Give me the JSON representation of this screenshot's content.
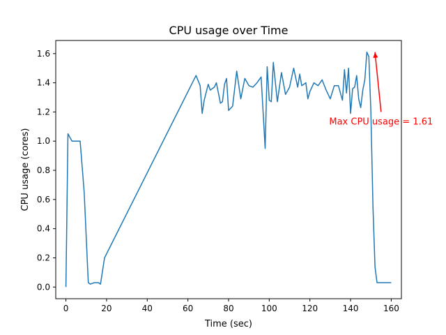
{
  "chart_data": {
    "type": "line",
    "title": "CPU usage over Time",
    "xlabel": "Time (sec)",
    "ylabel": "CPU usage (cores)",
    "xlim": [
      -5,
      165
    ],
    "ylim": [
      -0.08,
      1.69
    ],
    "xticks": [
      0,
      20,
      40,
      60,
      80,
      100,
      120,
      140,
      160
    ],
    "yticks": [
      0.0,
      0.2,
      0.4,
      0.6,
      0.8,
      1.0,
      1.2,
      1.4,
      1.6
    ],
    "ytick_labels": [
      "0.0",
      "0.2",
      "0.4",
      "0.6",
      "0.8",
      "1.0",
      "1.2",
      "1.4",
      "1.6"
    ],
    "grid": false,
    "series": [
      {
        "name": "CPU usage",
        "color": "#1f77b4",
        "x": [
          0,
          1,
          3,
          7,
          9,
          11,
          12,
          14,
          16,
          17,
          19,
          64,
          66,
          67,
          68,
          70,
          71,
          73,
          74,
          76,
          77,
          78,
          79,
          80,
          82,
          84,
          86,
          88,
          90,
          92,
          94,
          96,
          98,
          99,
          100,
          101,
          102,
          104,
          106,
          108,
          110,
          112,
          114,
          115,
          116,
          118,
          119,
          120,
          122,
          124,
          126,
          128,
          130,
          132,
          134,
          136,
          137,
          138,
          139,
          140,
          141,
          142,
          143,
          144,
          145,
          146,
          147,
          148,
          149,
          150,
          151,
          152,
          153,
          154,
          155,
          156,
          157,
          158,
          160
        ],
        "y": [
          0.0,
          1.05,
          1.0,
          1.0,
          0.65,
          0.03,
          0.02,
          0.03,
          0.03,
          0.02,
          0.2,
          1.45,
          1.38,
          1.19,
          1.28,
          1.39,
          1.35,
          1.37,
          1.4,
          1.26,
          1.27,
          1.39,
          1.43,
          1.21,
          1.24,
          1.48,
          1.29,
          1.43,
          1.38,
          1.37,
          1.4,
          1.44,
          0.95,
          1.51,
          1.28,
          1.27,
          1.54,
          1.27,
          1.47,
          1.32,
          1.37,
          1.5,
          1.37,
          1.46,
          1.38,
          1.4,
          1.29,
          1.34,
          1.4,
          1.38,
          1.42,
          1.35,
          1.29,
          1.38,
          1.38,
          1.28,
          1.49,
          1.33,
          1.5,
          1.19,
          1.36,
          1.37,
          1.45,
          1.29,
          1.23,
          1.35,
          1.42,
          1.61,
          1.58,
          1.2,
          0.55,
          0.14,
          0.03,
          0.03,
          0.03,
          0.03,
          0.03,
          0.03,
          0.03
        ]
      }
    ],
    "annotation": {
      "text": "Max CPU usage = 1.61",
      "color": "#ff0000",
      "xy": [
        152,
        1.61
      ],
      "xytext": [
        155,
        1.2
      ]
    }
  }
}
